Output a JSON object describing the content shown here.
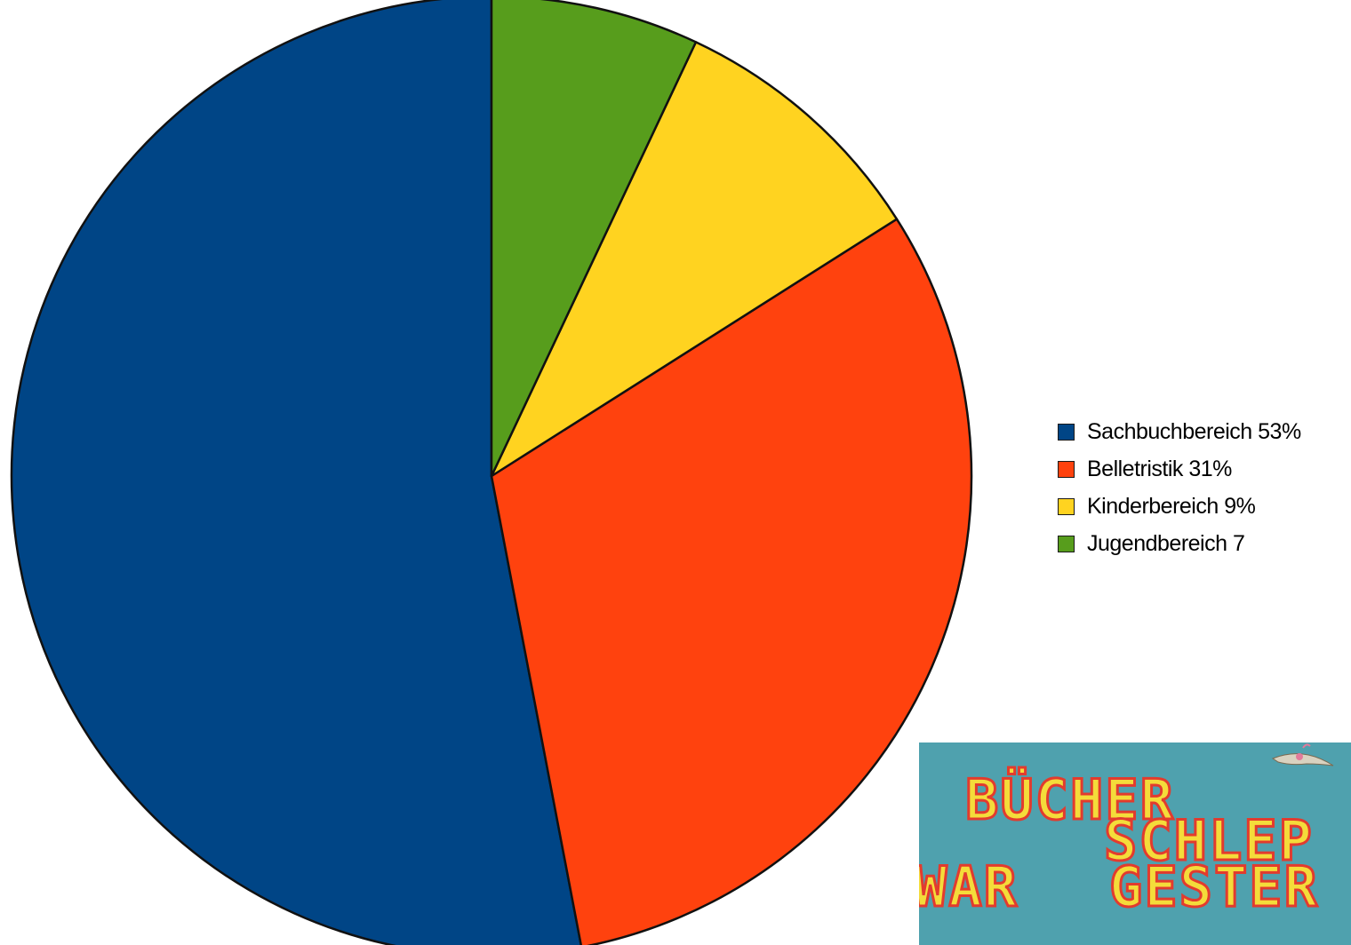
{
  "chart_data": {
    "type": "pie",
    "title": "",
    "slices": [
      {
        "label": "Sachbuchbereich 53%",
        "value": 53,
        "color": "#004586"
      },
      {
        "label": "Belletristik 31%",
        "value": 31,
        "color": "#ff420e"
      },
      {
        "label": "Kinderbereich 9%",
        "value": 9,
        "color": "#ffd320"
      },
      {
        "label": "Jugendbereich 7",
        "value": 7,
        "color": "#579d1c"
      }
    ],
    "legend_position": "right"
  },
  "banner": {
    "line1": "BÜCHER",
    "line2": "SCHLEP",
    "line3a": "WAR",
    "line3b": "GESTER",
    "background": "#4fa1ae",
    "text_fill": "#f4dc3a",
    "text_stroke": "#e23b2e"
  }
}
